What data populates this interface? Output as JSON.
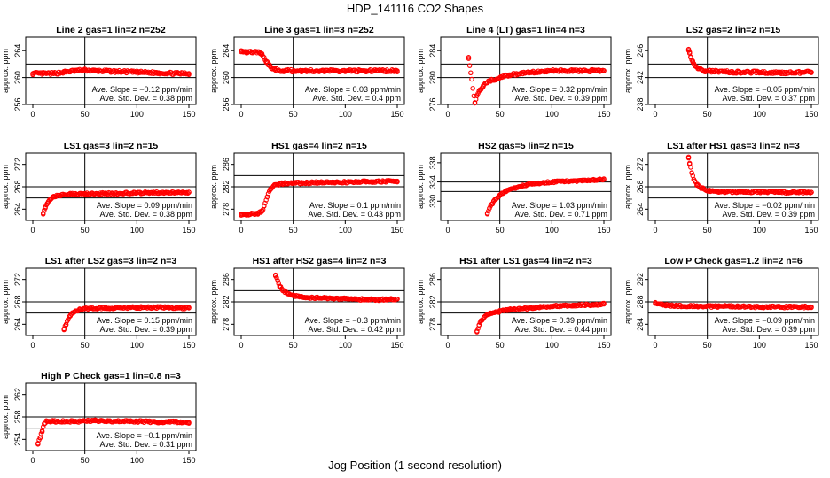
{
  "figure": {
    "title": "HDP_141116  CO2 Shapes",
    "xlabel": "Jog Position (1 second resolution)",
    "ylabel": "approx. ppm",
    "point_color": "#ff0000",
    "slope_label": "Ave. Slope =",
    "slope_unit": "ppm/min",
    "sd_label": "Ave. Std. Dev. =",
    "sd_unit": "ppm"
  },
  "chart_data": [
    {
      "type": "scatter",
      "title": "Line 2 gas=1 lin=2 n=252",
      "xlim": [
        0,
        150
      ],
      "ylim": [
        256,
        266
      ],
      "yticks": [
        256,
        260,
        264
      ],
      "xticks": [
        0,
        50,
        100,
        150
      ],
      "vline": 50,
      "hlines": [
        262,
        260
      ],
      "slope": "−0.12",
      "sd": "0.38",
      "points": [
        [
          0,
          260.6
        ],
        [
          10,
          260.6
        ],
        [
          20,
          260.6
        ],
        [
          30,
          260.8
        ],
        [
          40,
          261.0
        ],
        [
          50,
          261.1
        ],
        [
          60,
          261.0
        ],
        [
          80,
          260.9
        ],
        [
          100,
          260.8
        ],
        [
          120,
          260.7
        ],
        [
          140,
          260.6
        ],
        [
          150,
          260.6
        ]
      ]
    },
    {
      "type": "scatter",
      "title": "Line 3 gas=1 lin=3 n=252",
      "xlim": [
        0,
        150
      ],
      "ylim": [
        256,
        266
      ],
      "yticks": [
        256,
        260,
        264
      ],
      "xticks": [
        0,
        50,
        100,
        150
      ],
      "vline": 50,
      "hlines": [
        262,
        260
      ],
      "slope": "0.03",
      "sd": "0.4",
      "points": [
        [
          0,
          264.0
        ],
        [
          5,
          263.8
        ],
        [
          12,
          263.8
        ],
        [
          18,
          263.7
        ],
        [
          20,
          263.4
        ],
        [
          24,
          262.4
        ],
        [
          28,
          261.6
        ],
        [
          32,
          261.2
        ],
        [
          40,
          261.0
        ],
        [
          60,
          261.0
        ],
        [
          90,
          261.0
        ],
        [
          120,
          261.0
        ],
        [
          150,
          261.0
        ]
      ]
    },
    {
      "type": "scatter",
      "title": "Line 4 (LT) gas=1 lin=4 n=3",
      "xlim": [
        0,
        150
      ],
      "ylim": [
        276,
        286
      ],
      "yticks": [
        276,
        280,
        284
      ],
      "xticks": [
        0,
        50,
        100,
        150
      ],
      "vline": 50,
      "hlines": [
        282,
        280
      ],
      "slope": "0.32",
      "sd": "0.39",
      "points": [
        [
          20,
          283.0
        ],
        [
          26,
          276.2
        ],
        [
          28,
          277.3
        ],
        [
          30,
          278.0
        ],
        [
          34,
          278.8
        ],
        [
          40,
          279.5
        ],
        [
          50,
          280.0
        ],
        [
          60,
          280.4
        ],
        [
          80,
          280.8
        ],
        [
          100,
          281.0
        ],
        [
          120,
          281.0
        ],
        [
          140,
          281.0
        ],
        [
          150,
          281.0
        ]
      ]
    },
    {
      "type": "scatter",
      "title": "LS2 gas=2 lin=2 n=15",
      "xlim": [
        0,
        150
      ],
      "ylim": [
        238,
        248
      ],
      "yticks": [
        238,
        242,
        246
      ],
      "xticks": [
        0,
        50,
        100,
        150
      ],
      "vline": 50,
      "hlines": [
        244,
        242
      ],
      "slope": "−0.05",
      "sd": "0.37",
      "points": [
        [
          32,
          246.2
        ],
        [
          33,
          245.6
        ],
        [
          34,
          245.0
        ],
        [
          36,
          244.3
        ],
        [
          38,
          243.8
        ],
        [
          42,
          243.3
        ],
        [
          48,
          243.0
        ],
        [
          60,
          242.9
        ],
        [
          80,
          242.8
        ],
        [
          100,
          242.8
        ],
        [
          120,
          242.7
        ],
        [
          150,
          242.8
        ]
      ]
    },
    {
      "type": "scatter",
      "title": "LS1 gas=3 lin=2 n=15",
      "xlim": [
        0,
        150
      ],
      "ylim": [
        262,
        274
      ],
      "yticks": [
        264,
        268,
        272
      ],
      "xticks": [
        0,
        50,
        100,
        150
      ],
      "vline": 50,
      "hlines": [
        268,
        266
      ],
      "slope": "0.09",
      "sd": "0.38",
      "points": [
        [
          10,
          263.3
        ],
        [
          12,
          264.2
        ],
        [
          14,
          265.0
        ],
        [
          17,
          265.8
        ],
        [
          20,
          266.2
        ],
        [
          25,
          266.5
        ],
        [
          35,
          266.7
        ],
        [
          50,
          266.8
        ],
        [
          70,
          266.8
        ],
        [
          100,
          266.9
        ],
        [
          130,
          267.0
        ],
        [
          150,
          267.0
        ]
      ]
    },
    {
      "type": "scatter",
      "title": "HS1 gas=4 lin=2 n=15",
      "xlim": [
        0,
        150
      ],
      "ylim": [
        276,
        288
      ],
      "yticks": [
        278,
        282,
        286
      ],
      "xticks": [
        0,
        50,
        100,
        150
      ],
      "vline": 50,
      "hlines": [
        284,
        282
      ],
      "slope": "0.1",
      "sd": "0.43",
      "points": [
        [
          0,
          277.1
        ],
        [
          8,
          277.1
        ],
        [
          16,
          277.2
        ],
        [
          20,
          277.6
        ],
        [
          22,
          278.6
        ],
        [
          25,
          280.2
        ],
        [
          28,
          281.6
        ],
        [
          32,
          282.3
        ],
        [
          40,
          282.6
        ],
        [
          60,
          282.7
        ],
        [
          90,
          282.8
        ],
        [
          120,
          282.9
        ],
        [
          150,
          283.0
        ]
      ]
    },
    {
      "type": "scatter",
      "title": "HS2 gas=5 lin=2 n=15",
      "xlim": [
        0,
        150
      ],
      "ylim": [
        326,
        340
      ],
      "yticks": [
        330,
        334,
        338
      ],
      "xticks": [
        0,
        50,
        100,
        150
      ],
      "vline": 50,
      "hlines": [
        334,
        332
      ],
      "slope": "1.03",
      "sd": "0.71",
      "points": [
        [
          38,
          327.5
        ],
        [
          40,
          328.5
        ],
        [
          43,
          329.5
        ],
        [
          46,
          330.5
        ],
        [
          50,
          331.3
        ],
        [
          55,
          332.0
        ],
        [
          60,
          332.5
        ],
        [
          70,
          333.1
        ],
        [
          80,
          333.6
        ],
        [
          100,
          334.0
        ],
        [
          120,
          334.2
        ],
        [
          140,
          334.4
        ],
        [
          150,
          334.5
        ]
      ]
    },
    {
      "type": "scatter",
      "title": "LS1 after HS1 gas=3 lin=2 n=3",
      "xlim": [
        0,
        150
      ],
      "ylim": [
        262,
        274
      ],
      "yticks": [
        264,
        268,
        272
      ],
      "xticks": [
        0,
        50,
        100,
        150
      ],
      "vline": 50,
      "hlines": [
        268,
        266
      ],
      "slope": "−0.02",
      "sd": "0.39",
      "points": [
        [
          32,
          273.3
        ],
        [
          33,
          272.2
        ],
        [
          35,
          270.5
        ],
        [
          37,
          269.3
        ],
        [
          40,
          268.4
        ],
        [
          45,
          267.7
        ],
        [
          50,
          267.3
        ],
        [
          60,
          267.1
        ],
        [
          80,
          267.1
        ],
        [
          100,
          267.1
        ],
        [
          120,
          267.0
        ],
        [
          150,
          267.0
        ]
      ]
    },
    {
      "type": "scatter",
      "title": "LS1 after LS2 gas=3 lin=2 n=3",
      "xlim": [
        0,
        150
      ],
      "ylim": [
        262,
        274
      ],
      "yticks": [
        264,
        268,
        272
      ],
      "xticks": [
        0,
        50,
        100,
        150
      ],
      "vline": 50,
      "hlines": [
        268,
        266
      ],
      "slope": "0.15",
      "sd": "0.39",
      "points": [
        [
          30,
          263.2
        ],
        [
          32,
          264.0
        ],
        [
          34,
          264.9
        ],
        [
          36,
          265.6
        ],
        [
          40,
          266.2
        ],
        [
          45,
          266.6
        ],
        [
          50,
          266.8
        ],
        [
          70,
          266.9
        ],
        [
          100,
          267.0
        ],
        [
          130,
          267.0
        ],
        [
          150,
          266.9
        ]
      ]
    },
    {
      "type": "scatter",
      "title": "HS1 after HS2 gas=4 lin=2 n=3",
      "xlim": [
        0,
        150
      ],
      "ylim": [
        276,
        288
      ],
      "yticks": [
        278,
        282,
        286
      ],
      "xticks": [
        0,
        50,
        100,
        150
      ],
      "vline": 50,
      "hlines": [
        284,
        282
      ],
      "slope": "−0.3",
      "sd": "0.42",
      "points": [
        [
          33,
          286.8
        ],
        [
          35,
          285.8
        ],
        [
          37,
          284.8
        ],
        [
          40,
          284.0
        ],
        [
          45,
          283.5
        ],
        [
          50,
          283.1
        ],
        [
          60,
          282.8
        ],
        [
          80,
          282.7
        ],
        [
          100,
          282.6
        ],
        [
          120,
          282.4
        ],
        [
          140,
          282.4
        ],
        [
          150,
          282.5
        ]
      ]
    },
    {
      "type": "scatter",
      "title": "HS1 after LS1 gas=4 lin=2 n=3",
      "xlim": [
        0,
        150
      ],
      "ylim": [
        276,
        288
      ],
      "yticks": [
        278,
        282,
        286
      ],
      "xticks": [
        0,
        50,
        100,
        150
      ],
      "vline": 50,
      "hlines": [
        282,
        280
      ],
      "slope": "0.39",
      "sd": "0.44",
      "points": [
        [
          28,
          276.8
        ],
        [
          30,
          277.8
        ],
        [
          32,
          278.6
        ],
        [
          35,
          279.3
        ],
        [
          40,
          279.8
        ],
        [
          50,
          280.3
        ],
        [
          60,
          280.6
        ],
        [
          80,
          280.9
        ],
        [
          100,
          281.2
        ],
        [
          120,
          281.4
        ],
        [
          140,
          281.5
        ],
        [
          150,
          281.6
        ]
      ]
    },
    {
      "type": "scatter",
      "title": "Low P Check gas=1.2 lin=2 n=6",
      "xlim": [
        0,
        150
      ],
      "ylim": [
        282,
        294
      ],
      "yticks": [
        284,
        288,
        292
      ],
      "xticks": [
        0,
        50,
        100,
        150
      ],
      "vline": 50,
      "hlines": [
        288,
        286
      ],
      "slope": "−0.09",
      "sd": "0.39",
      "points": [
        [
          0,
          287.9
        ],
        [
          5,
          287.6
        ],
        [
          10,
          287.4
        ],
        [
          20,
          287.3
        ],
        [
          40,
          287.2
        ],
        [
          60,
          287.2
        ],
        [
          80,
          287.2
        ],
        [
          100,
          287.1
        ],
        [
          120,
          287.1
        ],
        [
          140,
          287.1
        ],
        [
          150,
          287.1
        ]
      ]
    },
    {
      "type": "scatter",
      "title": "High P Check gas=1 lin=0.8 n=3",
      "xlim": [
        0,
        150
      ],
      "ylim": [
        252,
        264
      ],
      "yticks": [
        254,
        258,
        262
      ],
      "xticks": [
        0,
        50,
        100,
        150
      ],
      "vline": 50,
      "hlines": [
        258,
        256
      ],
      "slope": "−0.1",
      "sd": "0.31",
      "points": [
        [
          5,
          253.3
        ],
        [
          7,
          254.3
        ],
        [
          9,
          255.5
        ],
        [
          11,
          256.8
        ],
        [
          13,
          257.3
        ],
        [
          20,
          257.2
        ],
        [
          40,
          257.2
        ],
        [
          60,
          257.3
        ],
        [
          80,
          257.2
        ],
        [
          100,
          257.2
        ],
        [
          120,
          257.1
        ],
        [
          140,
          257.1
        ],
        [
          150,
          257.0
        ]
      ]
    }
  ]
}
